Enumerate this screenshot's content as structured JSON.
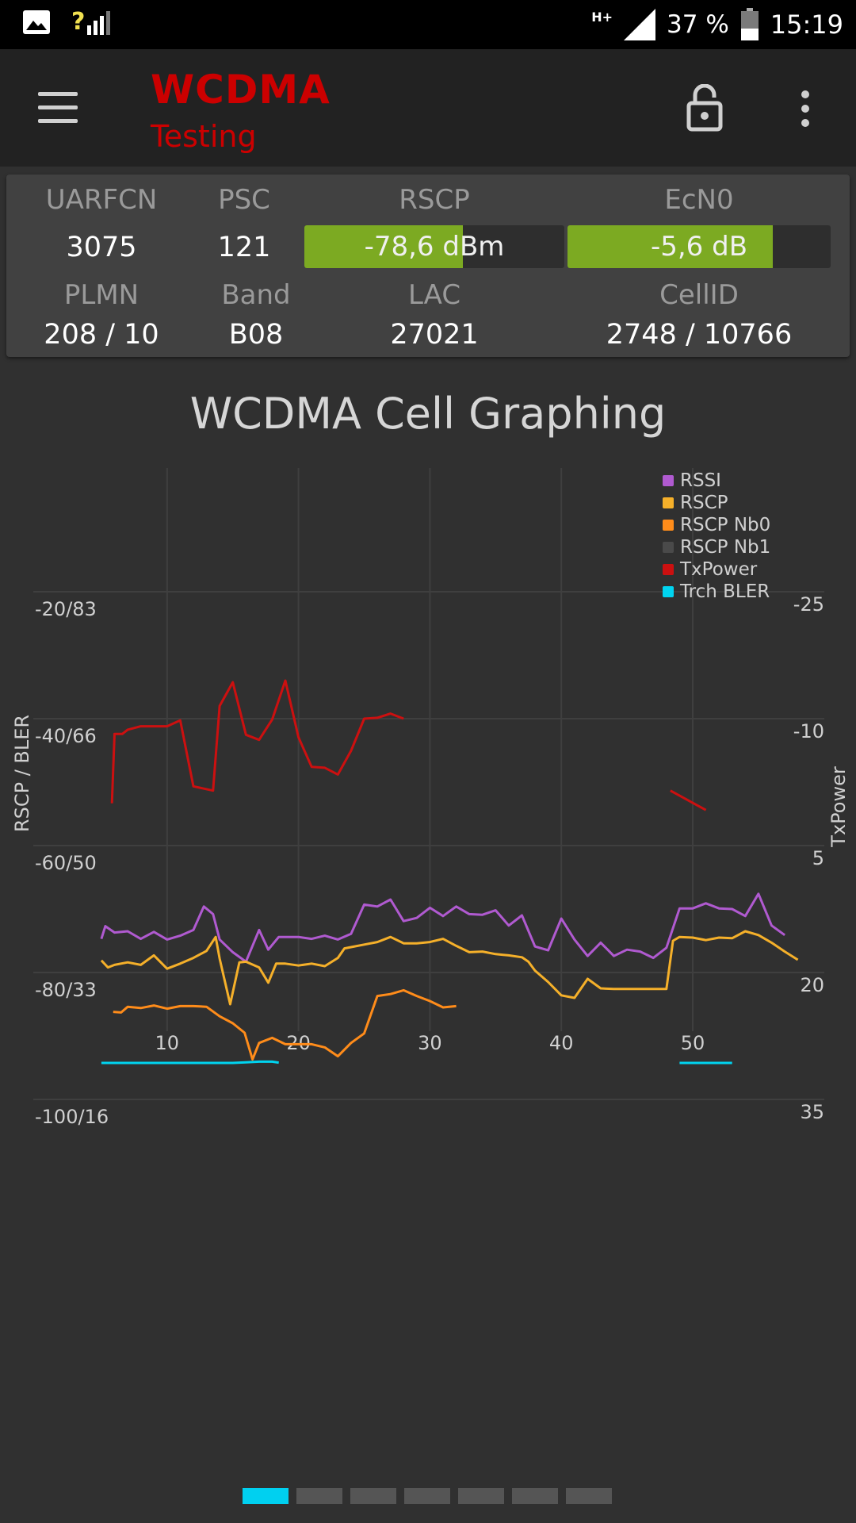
{
  "status_bar": {
    "signal": "?",
    "network": "H+",
    "battery": "37 %",
    "time": "15:19"
  },
  "toolbar": {
    "title": "WCDMA",
    "subtitle": "Testing",
    "menu_icon": "menu-icon",
    "lock_icon": "lock-open-icon",
    "overflow_icon": "more-vert-icon"
  },
  "cell_info": {
    "uarfcn_label": "UARFCN",
    "uarfcn": "3075",
    "psc_label": "PSC",
    "psc": "121",
    "rscp_label": "RSCP",
    "rscp": "-78,6 dBm",
    "rscp_level": 0.61,
    "ecn0_label": "EcN0",
    "ecn0": "-5,6 dB",
    "ecn0_level": 0.78,
    "plmn_label": "PLMN",
    "plmn": "208 / 10",
    "band_label": "Band",
    "band": "B08",
    "lac_label": "LAC",
    "lac": "27021",
    "cellid_label": "CellID",
    "cellid": "2748 / 10766",
    "bar_color": "#7caa22"
  },
  "chart_data": {
    "type": "line",
    "title": "WCDMA Cell Graphing",
    "ylabel": "RSCP / BLER",
    "ylabel_right": "TxPower",
    "y_ticks_left": [
      "-20/83",
      "-40/66",
      "-60/50",
      "-80/33",
      "-100/16"
    ],
    "y_ticks_right": [
      "-25",
      "-10",
      "5",
      "20",
      "35"
    ],
    "x_ticks": [
      10,
      20,
      30,
      40,
      50
    ],
    "xlim": [
      0,
      58
    ],
    "ylim": [
      -120,
      -0.5
    ],
    "grid": true,
    "legend_position": "top-right",
    "series": [
      {
        "name": "RSSI",
        "color": "#b05ad0",
        "axis": "left",
        "points": [
          [
            5,
            -74.7
          ],
          [
            5.3,
            -72.7
          ],
          [
            6,
            -73.7
          ],
          [
            7,
            -73.5
          ],
          [
            8,
            -74.7
          ],
          [
            9,
            -73.6
          ],
          [
            10,
            -74.8
          ],
          [
            11,
            -74.2
          ],
          [
            12,
            -73.3
          ],
          [
            12.8,
            -69.6
          ],
          [
            13.5,
            -70.8
          ],
          [
            14,
            -74.8
          ],
          [
            15,
            -76.8
          ],
          [
            16,
            -78.3
          ],
          [
            17,
            -73.3
          ],
          [
            17.7,
            -76.4
          ],
          [
            18.5,
            -74.4
          ],
          [
            20,
            -74.4
          ],
          [
            21,
            -74.7
          ],
          [
            22,
            -74.2
          ],
          [
            23,
            -74.8
          ],
          [
            24,
            -73.9
          ],
          [
            25,
            -69.3
          ],
          [
            26,
            -69.6
          ],
          [
            27,
            -68.5
          ],
          [
            28,
            -71.9
          ],
          [
            29,
            -71.4
          ],
          [
            30,
            -69.8
          ],
          [
            31,
            -71.1
          ],
          [
            32,
            -69.6
          ],
          [
            33,
            -70.8
          ],
          [
            34,
            -70.9
          ],
          [
            35,
            -70.2
          ],
          [
            36,
            -72.6
          ],
          [
            37,
            -71
          ],
          [
            38,
            -75.9
          ],
          [
            39,
            -76.5
          ],
          [
            40,
            -71.5
          ],
          [
            41,
            -74.8
          ],
          [
            42,
            -77.4
          ],
          [
            43,
            -75.3
          ],
          [
            44,
            -77.4
          ],
          [
            45,
            -76.4
          ],
          [
            46,
            -76.7
          ],
          [
            47,
            -77.7
          ],
          [
            48,
            -76.1
          ],
          [
            49,
            -69.9
          ],
          [
            50,
            -69.9
          ],
          [
            51,
            -69.1
          ],
          [
            52,
            -69.9
          ],
          [
            53,
            -70
          ],
          [
            54,
            -71.1
          ],
          [
            55,
            -67.6
          ],
          [
            56,
            -72.6
          ],
          [
            57,
            -74.1
          ]
        ]
      },
      {
        "name": "RSCP",
        "color": "#f5b02a",
        "axis": "left",
        "points": [
          [
            5,
            -78.1
          ],
          [
            5.5,
            -79.2
          ],
          [
            6,
            -78.8
          ],
          [
            7,
            -78.4
          ],
          [
            8,
            -78.8
          ],
          [
            9,
            -77.3
          ],
          [
            10,
            -79.4
          ],
          [
            11,
            -78.6
          ],
          [
            12,
            -77.7
          ],
          [
            13,
            -76.6
          ],
          [
            13.7,
            -74.4
          ],
          [
            14,
            -77.8
          ],
          [
            14.8,
            -85
          ],
          [
            15.5,
            -78.4
          ],
          [
            16,
            -78.3
          ],
          [
            17,
            -79.2
          ],
          [
            17.7,
            -81.6
          ],
          [
            18.3,
            -78.6
          ],
          [
            19,
            -78.6
          ],
          [
            20,
            -78.9
          ],
          [
            21,
            -78.6
          ],
          [
            22,
            -79
          ],
          [
            23,
            -77.7
          ],
          [
            23.5,
            -76.2
          ],
          [
            24,
            -76
          ],
          [
            25,
            -75.6
          ],
          [
            26,
            -75.2
          ],
          [
            27,
            -74.4
          ],
          [
            28,
            -75.4
          ],
          [
            29,
            -75.4
          ],
          [
            30,
            -75.2
          ],
          [
            31,
            -74.7
          ],
          [
            32,
            -75.8
          ],
          [
            33,
            -76.8
          ],
          [
            34,
            -76.7
          ],
          [
            35,
            -77.1
          ],
          [
            36,
            -77.3
          ],
          [
            37,
            -77.6
          ],
          [
            37.5,
            -78.3
          ],
          [
            38,
            -79.7
          ],
          [
            39,
            -81.5
          ],
          [
            40,
            -83.6
          ],
          [
            41,
            -84
          ],
          [
            42,
            -81
          ],
          [
            43,
            -82.5
          ],
          [
            44,
            -82.6
          ],
          [
            45,
            -82.6
          ],
          [
            46,
            -82.6
          ],
          [
            47,
            -82.6
          ],
          [
            48,
            -82.6
          ],
          [
            48.5,
            -75
          ],
          [
            49,
            -74.4
          ],
          [
            50,
            -74.5
          ],
          [
            51,
            -74.9
          ],
          [
            52,
            -74.5
          ],
          [
            53,
            -74.6
          ],
          [
            54,
            -73.5
          ],
          [
            55,
            -74.1
          ],
          [
            56,
            -75.3
          ],
          [
            57,
            -76.7
          ],
          [
            58,
            -78
          ]
        ]
      },
      {
        "name": "RSCP Nb0",
        "color": "#ff8c1a",
        "axis": "left",
        "points": [
          [
            5.9,
            -86.2
          ],
          [
            6.5,
            -86.3
          ],
          [
            7,
            -85.4
          ],
          [
            8,
            -85.6
          ],
          [
            9,
            -85.2
          ],
          [
            10,
            -85.7
          ],
          [
            11,
            -85.3
          ],
          [
            12,
            -85.3
          ],
          [
            13,
            -85.4
          ],
          [
            14,
            -86.9
          ],
          [
            15,
            -88
          ],
          [
            15.9,
            -89.5
          ],
          [
            16.5,
            -93.7
          ],
          [
            17,
            -91.1
          ],
          [
            18,
            -90.3
          ],
          [
            19,
            -91.3
          ],
          [
            20,
            -91.3
          ],
          [
            21,
            -91.3
          ],
          [
            22,
            -91.8
          ],
          [
            23,
            -93.2
          ],
          [
            24,
            -91.1
          ],
          [
            25,
            -89.6
          ],
          [
            26,
            -83.7
          ],
          [
            27,
            -83.4
          ],
          [
            28,
            -82.8
          ],
          [
            29,
            -83.7
          ],
          [
            30,
            -84.5
          ],
          [
            31,
            -85.5
          ],
          [
            32,
            -85.3
          ]
        ]
      },
      {
        "name": "RSCP Nb1",
        "color": "#4a4a4a",
        "axis": "left",
        "points": []
      },
      {
        "name": "TxPower",
        "color": "#cc1010",
        "axis": "right",
        "points": [
          [
            5.8,
            0
          ],
          [
            6,
            -8.2
          ],
          [
            6.6,
            -8.2
          ],
          [
            7,
            -8.7
          ],
          [
            8,
            -9.1
          ],
          [
            9,
            -9.1
          ],
          [
            10,
            -9.1
          ],
          [
            11,
            -9.8
          ],
          [
            12,
            -2
          ],
          [
            13.5,
            -1.5
          ],
          [
            14,
            -11.5
          ],
          [
            15,
            -14.3
          ],
          [
            16,
            -8.1
          ],
          [
            17,
            -7.5
          ],
          [
            18,
            -9.9
          ],
          [
            19,
            -14.5
          ],
          [
            20,
            -7.8
          ],
          [
            21,
            -4.3
          ],
          [
            22,
            -4.2
          ],
          [
            23,
            -3.4
          ],
          [
            24,
            -6.2
          ],
          [
            25,
            -10
          ],
          [
            26,
            -10.1
          ],
          [
            27,
            -10.6
          ],
          [
            28,
            -10
          ],
          [
            29,
            -10.2
          ],
          [
            30,
            -10.2
          ],
          [
            31,
            -9.8
          ],
          [
            32,
            -9.1
          ],
          [
            33,
            -9.1
          ],
          [
            34,
            -8.8
          ],
          [
            35,
            -9.7
          ],
          [
            36,
            -9.5
          ],
          [
            37,
            -10.6
          ],
          [
            38,
            -9.9
          ],
          [
            39,
            -10.3
          ],
          [
            40,
            -10.1
          ],
          [
            41,
            -10.1
          ],
          [
            42,
            -10.4
          ],
          [
            43,
            -10.4
          ],
          [
            44,
            -10.4
          ],
          [
            45,
            -10.4
          ],
          [
            46,
            -10.4
          ],
          [
            47,
            -10.4
          ],
          [
            48,
            -10.4
          ],
          [
            49,
            -10.4
          ],
          [
            50,
            -10.5
          ],
          [
            51,
            -10.6
          ],
          [
            52,
            -10.4
          ],
          [
            53,
            -10.2
          ],
          [
            54,
            -10.5
          ],
          [
            55,
            -10.4
          ],
          [
            56,
            -10.8
          ],
          [
            57,
            -10.6
          ],
          [
            58,
            -10.9
          ]
        ]
      },
      {
        "name": "Trch BLER",
        "color": "#00d4f0",
        "axis": "left",
        "points": [
          [
            5,
            -119
          ],
          [
            10,
            -119
          ],
          [
            15,
            -119
          ],
          [
            16,
            -118.8
          ],
          [
            17,
            -118.6
          ],
          [
            18,
            -118.6
          ],
          [
            18.5,
            -118.9
          ],
          [
            49,
            -119
          ],
          [
            50,
            -119
          ],
          [
            51,
            -119
          ],
          [
            52,
            -119
          ],
          [
            53,
            -119
          ]
        ]
      }
    ]
  },
  "pager": {
    "count": 7,
    "active": 0
  }
}
